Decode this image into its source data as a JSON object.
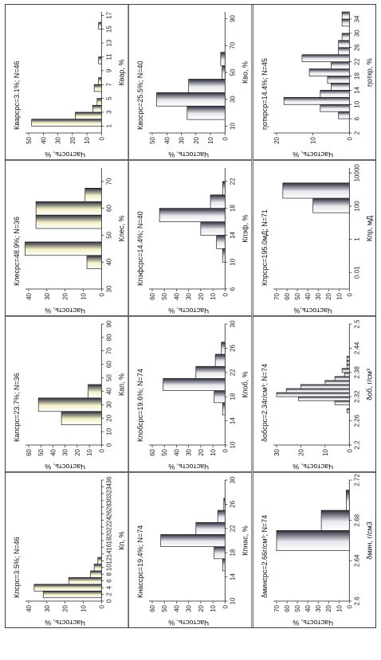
{
  "chart_data": [
    {
      "id": "kp",
      "type": "bar",
      "title": "Кпсрс=3.5%; N=46",
      "xlabel": "Кп, %",
      "ylabel": "Частость, %",
      "xticks": [
        "0",
        "2",
        "4",
        "6",
        "8",
        "10",
        "12",
        "14",
        "16",
        "18",
        "20",
        "22",
        "24",
        "26",
        "28",
        "30",
        "32",
        "34",
        "36"
      ],
      "xlim": [
        0,
        36
      ],
      "ylim": [
        0,
        40
      ],
      "yticks": [
        "0",
        "10",
        "20",
        "30",
        "40"
      ],
      "bins": [
        [
          1,
          3,
          32
        ],
        [
          3,
          5,
          37
        ],
        [
          5,
          7,
          18
        ],
        [
          7,
          9,
          6
        ],
        [
          9,
          11,
          4
        ],
        [
          11,
          13,
          2
        ]
      ]
    },
    {
      "id": "kap",
      "type": "bar",
      "title": "Капсрс=23.7%; N=36",
      "xlabel": "Кап, %",
      "ylabel": "Частость, %",
      "xticks": [
        "0",
        "10",
        "20",
        "30",
        "40",
        "50",
        "60",
        "70",
        "80",
        "90"
      ],
      "xlim": [
        0,
        90
      ],
      "ylim": [
        0,
        60
      ],
      "yticks": [
        "0",
        "10",
        "20",
        "30",
        "40",
        "50",
        "60"
      ],
      "bins": [
        [
          15,
          25,
          33
        ],
        [
          25,
          35,
          52
        ],
        [
          35,
          45,
          11
        ]
      ]
    },
    {
      "id": "kles",
      "type": "bar",
      "title": "Клесрс=48.9%; N=36",
      "xlabel": "Клес, %",
      "ylabel": "Частость, %",
      "xticks": [
        "30",
        "40",
        "50",
        "60",
        "70"
      ],
      "xlim": [
        30,
        75
      ],
      "ylim": [
        0,
        40
      ],
      "yticks": [
        "0",
        "10",
        "20",
        "30",
        "40"
      ],
      "bins": [
        [
          37.5,
          42.5,
          8
        ],
        [
          42.5,
          47.5,
          42
        ],
        [
          52.5,
          57.5,
          36
        ],
        [
          57.5,
          62.5,
          36
        ],
        [
          62.5,
          67.5,
          9
        ]
      ]
    },
    {
      "id": "kvar",
      "type": "bar",
      "title": "Кварсрс=3.1%; N=46",
      "xlabel": "Квар, %",
      "ylabel": "Частость, %",
      "xticks": [
        "1",
        "3",
        "5",
        "7",
        "9",
        "11",
        "13",
        "15",
        "17"
      ],
      "xlim": [
        0,
        17.5
      ],
      "ylim": [
        0,
        50
      ],
      "yticks": [
        "0",
        "10",
        "20",
        "30",
        "40",
        "50"
      ],
      "bins": [
        [
          1,
          2,
          48
        ],
        [
          2,
          3,
          18
        ],
        [
          3,
          4,
          6
        ],
        [
          4,
          5,
          3
        ],
        [
          6,
          7,
          5
        ],
        [
          7,
          8,
          2
        ],
        [
          10,
          11,
          2
        ],
        [
          15,
          16,
          2
        ]
      ]
    },
    {
      "id": "knas",
      "type": "bar",
      "title": "Кнассрс=19.4%; N=74",
      "xlabel": "Кпнас, %",
      "ylabel": "Частость, %",
      "xticks": [
        "10",
        "14",
        "18",
        "22",
        "26",
        "30"
      ],
      "xlim": [
        10,
        30
      ],
      "ylim": [
        0,
        60
      ],
      "yticks": [
        "0",
        "10",
        "20",
        "30",
        "40",
        "50",
        "60"
      ],
      "bins": [
        [
          15,
          17,
          2
        ],
        [
          17,
          19,
          9
        ],
        [
          19,
          21,
          53
        ],
        [
          21,
          23,
          24
        ],
        [
          23,
          25,
          6
        ],
        [
          25,
          27,
          1
        ]
      ]
    },
    {
      "id": "kpob",
      "type": "bar",
      "title": "Кпобсрс=19.6%; N=74",
      "xlabel": "Кпоб, %",
      "ylabel": "Частость, %",
      "xticks": [
        "10",
        "14",
        "18",
        "22",
        "26",
        "30"
      ],
      "xlim": [
        10,
        30
      ],
      "ylim": [
        0,
        60
      ],
      "yticks": [
        "0",
        "10",
        "20",
        "30",
        "40",
        "50",
        "60"
      ],
      "bins": [
        [
          15,
          17,
          2
        ],
        [
          17,
          19,
          9
        ],
        [
          19,
          21,
          51
        ],
        [
          21,
          23,
          24
        ],
        [
          23,
          25,
          8
        ],
        [
          25,
          27,
          3
        ]
      ]
    },
    {
      "id": "kpef",
      "type": "bar",
      "title": "Кпэфсрс=14.4%; N=40",
      "xlabel": "Кпэф, %",
      "ylabel": "Частость, %",
      "xticks": [
        "6",
        "10",
        "14",
        "18",
        "22"
      ],
      "xlim": [
        6,
        24
      ],
      "ylim": [
        0,
        60
      ],
      "yticks": [
        "0",
        "10",
        "20",
        "30",
        "40",
        "50",
        "60"
      ],
      "bins": [
        [
          10,
          12,
          2
        ],
        [
          12,
          14,
          7
        ],
        [
          14,
          16,
          20
        ],
        [
          16,
          18,
          54
        ],
        [
          18,
          20,
          12
        ],
        [
          20,
          22,
          2
        ]
      ]
    },
    {
      "id": "kvo",
      "type": "bar",
      "title": "Квосрс=25.5%; N=40",
      "xlabel": "Кво, %",
      "ylabel": "Частость, %",
      "xticks": [
        "10",
        "30",
        "50",
        "70",
        "90"
      ],
      "xlim": [
        5,
        95
      ],
      "ylim": [
        0,
        50
      ],
      "yticks": [
        "0",
        "10",
        "20",
        "30",
        "40",
        "50"
      ],
      "bins": [
        [
          15,
          25,
          26
        ],
        [
          25,
          35,
          47
        ],
        [
          35,
          45,
          25
        ],
        [
          45,
          55,
          2
        ],
        [
          55,
          65,
          3
        ]
      ]
    },
    {
      "id": "dmin",
      "type": "bar",
      "title": "δминсрс=2.66г/см³; N=74",
      "xlabel": "δмин, г/см3",
      "ylabel": "Частость, %",
      "xticks": [
        "2.6",
        "2.64",
        "2.68",
        "2.72"
      ],
      "xlim": [
        2.6,
        2.72
      ],
      "ylim": [
        0,
        70
      ],
      "yticks": [
        "0",
        "10",
        "20",
        "30",
        "40",
        "50",
        "60",
        "70"
      ],
      "bins": [
        [
          2.65,
          2.67,
          70
        ],
        [
          2.67,
          2.69,
          27
        ],
        [
          2.69,
          2.71,
          3
        ]
      ]
    },
    {
      "id": "dob",
      "type": "bar",
      "title": "δобсрс=2.34г/см³; N=74",
      "xlabel": "δоб, г/см³",
      "ylabel": "Частость, %",
      "xticks": [
        "2.2",
        "2.26",
        "2.32",
        "2.38",
        "2.44",
        "2.5"
      ],
      "xlim": [
        2.2,
        2.5
      ],
      "ylim": [
        0,
        30
      ],
      "yticks": [
        "0",
        "10",
        "20",
        "30"
      ],
      "bins": [
        [
          2.28,
          2.29,
          1
        ],
        [
          2.3,
          2.31,
          6
        ],
        [
          2.31,
          2.32,
          21
        ],
        [
          2.32,
          2.33,
          30
        ],
        [
          2.33,
          2.34,
          26
        ],
        [
          2.34,
          2.35,
          20
        ],
        [
          2.35,
          2.36,
          10
        ],
        [
          2.36,
          2.37,
          6
        ],
        [
          2.37,
          2.38,
          2
        ],
        [
          2.38,
          2.39,
          3
        ],
        [
          2.39,
          2.4,
          1
        ],
        [
          2.4,
          2.41,
          1
        ],
        [
          2.41,
          2.42,
          1
        ]
      ]
    },
    {
      "id": "kpr",
      "type": "bar",
      "title": "Кпрсрс=195.0мД; N=71",
      "xlabel": "Кпр, мД",
      "ylabel": "Частость,%",
      "xscale": "log",
      "xticks": [
        "0.01",
        "1",
        "100",
        "10000"
      ],
      "xlim": [
        0.001,
        20000
      ],
      "ylim": [
        0,
        70
      ],
      "yticks": [
        "0",
        "10",
        "20",
        "30",
        "40",
        "50",
        "60",
        "70"
      ],
      "bins": [
        [
          40,
          300,
          35
        ],
        [
          300,
          2500,
          64
        ]
      ]
    },
    {
      "id": "eta",
      "type": "bar",
      "title": "ηоткрср=14.4%; N=45",
      "xlabel": "ηоткр, %",
      "ylabel": "Частость, %",
      "xticks": [
        "2",
        "6",
        "10",
        "14",
        "18",
        "22",
        "26",
        "30",
        "34"
      ],
      "xlim": [
        2,
        36
      ],
      "ylim": [
        0,
        20
      ],
      "yticks": [
        "0",
        "10",
        "20"
      ],
      "bins": [
        [
          6,
          8,
          3
        ],
        [
          8,
          10,
          8
        ],
        [
          10,
          12,
          18
        ],
        [
          12,
          14,
          8
        ],
        [
          14,
          16,
          5
        ],
        [
          16,
          18,
          6
        ],
        [
          18,
          20,
          11
        ],
        [
          20,
          22,
          5
        ],
        [
          22,
          24,
          13
        ],
        [
          24,
          26,
          3
        ],
        [
          26,
          28,
          3
        ],
        [
          28,
          30,
          2
        ],
        [
          32,
          34,
          2
        ],
        [
          34,
          36,
          2
        ]
      ]
    }
  ]
}
